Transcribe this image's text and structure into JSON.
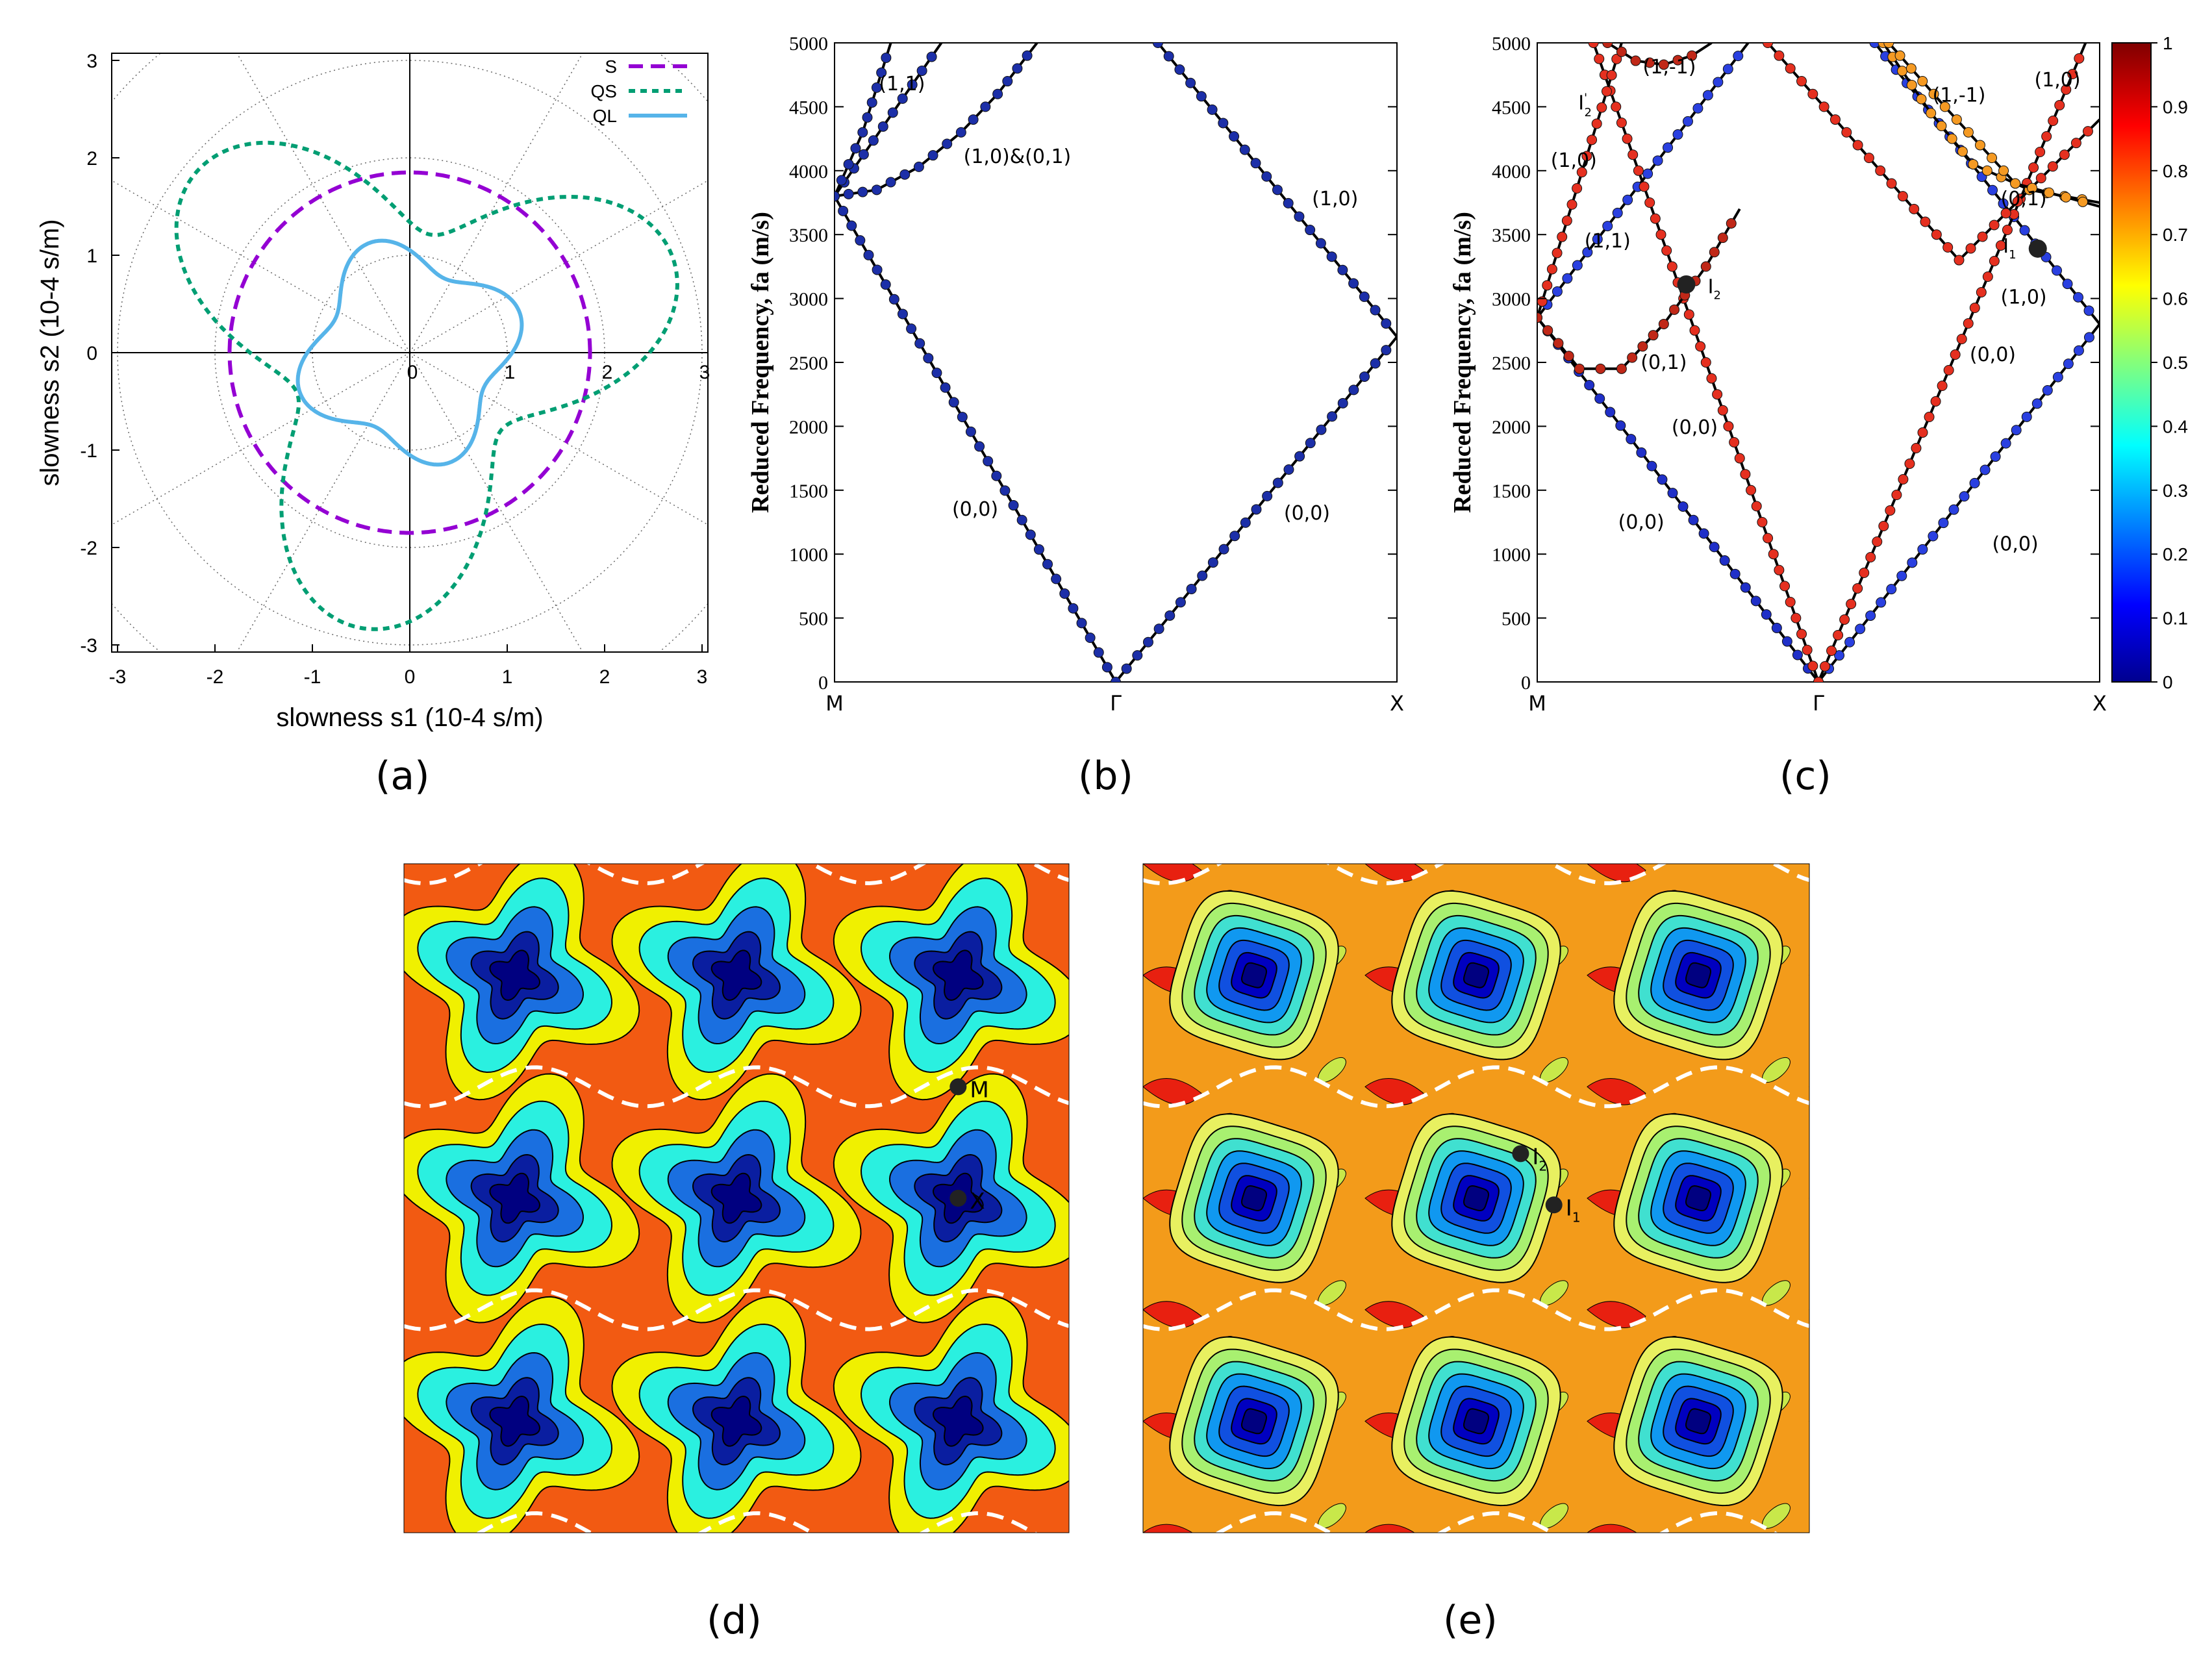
{
  "chart_data": [
    {
      "panel": "(a)",
      "type": "polar-curves",
      "xlabel": "slowness s1 (10-4 s/m)",
      "ylabel": "slowness s2 (10-4 s/m)",
      "xlim": [
        -3,
        3
      ],
      "ylim": [
        -3,
        3
      ],
      "xticks": [
        "-3",
        "-2",
        "-1",
        "0",
        "1",
        "2",
        "3"
      ],
      "yticks": [
        "-3",
        "-2",
        "-1",
        "0",
        "1",
        "2",
        "3"
      ],
      "radial_ticks": [
        "0",
        "1",
        "2",
        "3"
      ],
      "grid": "polar dotted",
      "legend_position": "top-right",
      "series": [
        {
          "name": "S",
          "color": "#9400d3",
          "style": "dashed",
          "r0": 1.85,
          "harmonics": []
        },
        {
          "name": "QS",
          "color": "#009e73",
          "style": "dotted",
          "r0": 2.05,
          "harmonics": [
            {
              "k": 3,
              "amp": 0.82,
              "phase_deg": 20
            }
          ]
        },
        {
          "name": "QL",
          "color": "#56b4e9",
          "style": "solid",
          "r0": 1.02,
          "harmonics": [
            {
              "k": 4,
              "amp": 0.18,
              "phase_deg": 20
            }
          ]
        }
      ]
    },
    {
      "panel": "(b)",
      "type": "line",
      "ylabel": "Reduced Frequency, fa (m/s)",
      "ylim": [
        0,
        5000
      ],
      "yticks": [
        0,
        500,
        1000,
        1500,
        2000,
        2500,
        3000,
        3500,
        4000,
        4500,
        5000
      ],
      "xcategories": [
        "M",
        "Γ",
        "X"
      ],
      "marker_color": "#1c2fa8",
      "branches": [
        {
          "points": [
            [
              0,
              3800
            ],
            [
              1,
              0
            ]
          ]
        },
        {
          "points": [
            [
              1,
              0
            ],
            [
              2,
              2700
            ]
          ]
        },
        {
          "points": [
            [
              0,
              3800
            ],
            [
              0.38,
              5000
            ]
          ]
        },
        {
          "points": [
            [
              1.15,
              5000
            ],
            [
              2,
              2700
            ]
          ]
        },
        {
          "points": [
            [
              0,
              3800
            ],
            [
              0.15,
              3850
            ],
            [
              0.3,
              4030
            ],
            [
              0.45,
              4300
            ],
            [
              0.58,
              4600
            ],
            [
              0.72,
              5000
            ]
          ]
        },
        {
          "points": [
            [
              0,
              3800
            ],
            [
              0.1,
              4300
            ],
            [
              0.2,
              5000
            ]
          ]
        }
      ],
      "annotations": [
        {
          "text": "(1,1)",
          "x": 0.24,
          "y": 4630
        },
        {
          "text": "(1,0)&(0,1)",
          "x": 0.65,
          "y": 4060
        },
        {
          "text": "(1,0)",
          "x": 1.78,
          "y": 3730
        },
        {
          "text": "(0,0)",
          "x": 0.5,
          "y": 1300
        },
        {
          "text": "(0,0)",
          "x": 1.68,
          "y": 1270
        }
      ]
    },
    {
      "panel": "(c)",
      "type": "line",
      "ylabel": "Reduced Frequency, fa (m/s)",
      "ylim": [
        0,
        5000
      ],
      "yticks": [
        0,
        500,
        1000,
        1500,
        2000,
        2500,
        3000,
        3500,
        4000,
        4500,
        5000
      ],
      "xcategories": [
        "M",
        "Γ",
        "X"
      ],
      "colorbar": {
        "min": 0,
        "max": 1,
        "ticks": [
          "0",
          "0.1",
          "0.2",
          "0.3",
          "0.4",
          "0.5",
          "0.6",
          "0.7",
          "0.8",
          "0.9",
          "1"
        ]
      },
      "branches": [
        {
          "points": [
            [
              0,
              2850
            ],
            [
              1,
              0
            ]
          ],
          "color": "#2030c8"
        },
        {
          "points": [
            [
              1,
              0
            ],
            [
              2,
              2800
            ]
          ],
          "color": "#2a40e0"
        },
        {
          "points": [
            [
              0,
              2850
            ],
            [
              0.75,
              5000
            ]
          ],
          "color": "#2a40e0"
        },
        {
          "points": [
            [
              1.2,
              5000
            ],
            [
              2,
              2800
            ]
          ],
          "color": "#2a40e0"
        },
        {
          "points": [
            [
              0.2,
              5000
            ],
            [
              1,
              0
            ]
          ],
          "color": "#e53020"
        },
        {
          "points": [
            [
              1,
              0
            ],
            [
              1.95,
              5000
            ]
          ],
          "color": "#e53020"
        },
        {
          "points": [
            [
              0,
              2850
            ],
            [
              0.3,
              5000
            ]
          ],
          "color": "#e53020"
        },
        {
          "points": [
            [
              0.82,
              5000
            ],
            [
              1.5,
              3300
            ],
            [
              2,
              4400
            ]
          ],
          "color": "#e53020"
        },
        {
          "points": [
            [
              0,
              2850
            ],
            [
              0.15,
              2450
            ],
            [
              0.3,
              2450
            ],
            [
              0.45,
              2800
            ],
            [
              0.6,
              3250
            ],
            [
              0.72,
              3700
            ]
          ],
          "color": "#c02818"
        },
        {
          "points": [
            [
              0.25,
              5000
            ],
            [
              0.35,
              4860
            ],
            [
              0.45,
              4830
            ],
            [
              0.55,
              4900
            ],
            [
              0.62,
              5000
            ]
          ],
          "color": "#c02818"
        },
        {
          "points": [
            [
              1.23,
              5000
            ],
            [
              1.4,
              4450
            ],
            [
              1.55,
              4050
            ],
            [
              1.75,
              3850
            ],
            [
              2,
              3750
            ]
          ],
          "color": "#f59a23"
        },
        {
          "points": [
            [
              1.25,
              5000
            ],
            [
              1.45,
              4500
            ],
            [
              1.7,
              3900
            ],
            [
              2,
              3720
            ]
          ],
          "color": "#f59a23"
        }
      ],
      "markers": [
        {
          "text": "I1",
          "x": 1.78,
          "y": 3390
        },
        {
          "text": "I2",
          "x": 0.53,
          "y": 3110
        }
      ],
      "annotations": [
        {
          "text": "I'2",
          "x": 0.17,
          "y": 4480
        },
        {
          "text": "(1,0)",
          "x": 0.13,
          "y": 4030
        },
        {
          "text": "(1,1)",
          "x": 0.25,
          "y": 3400
        },
        {
          "text": "(1,-1)",
          "x": 0.47,
          "y": 4760
        },
        {
          "text": "(0,1)",
          "x": 0.45,
          "y": 2450
        },
        {
          "text": "(0,0)",
          "x": 0.56,
          "y": 1940
        },
        {
          "text": "(0,0)",
          "x": 0.37,
          "y": 1200
        },
        {
          "text": "(1,-1)",
          "x": 1.5,
          "y": 4540
        },
        {
          "text": "(1,0)",
          "x": 1.85,
          "y": 4660
        },
        {
          "text": "(0,1)",
          "x": 1.73,
          "y": 3730
        },
        {
          "text": "(1,0)",
          "x": 1.73,
          "y": 2960
        },
        {
          "text": "(0,0)",
          "x": 1.62,
          "y": 2510
        },
        {
          "text": "(0,0)",
          "x": 1.7,
          "y": 1030
        }
      ]
    },
    {
      "panel": "(d)",
      "type": "heatmap",
      "pattern": "four-lobed star wells",
      "grid": [
        3,
        3
      ],
      "points": [
        {
          "text": "M",
          "col": 2.5,
          "row": 1.0
        },
        {
          "text": "X",
          "col": 2.5,
          "row": 1.5
        }
      ]
    },
    {
      "panel": "(e)",
      "type": "heatmap",
      "pattern": "rounded square wells",
      "grid": [
        3,
        3
      ],
      "points": [
        {
          "text": "I2",
          "col": 1.7,
          "row": 1.3
        },
        {
          "text": "I1",
          "col": 1.85,
          "row": 1.53
        }
      ]
    }
  ],
  "labels": {
    "a": "(a)",
    "b": "(b)",
    "c": "(c)",
    "d": "(d)",
    "e": "(e)"
  },
  "colors": {
    "dark_blue": "#000080",
    "orange": "#ff8c00",
    "red": "#e82010",
    "dashes": "#ffffff"
  }
}
